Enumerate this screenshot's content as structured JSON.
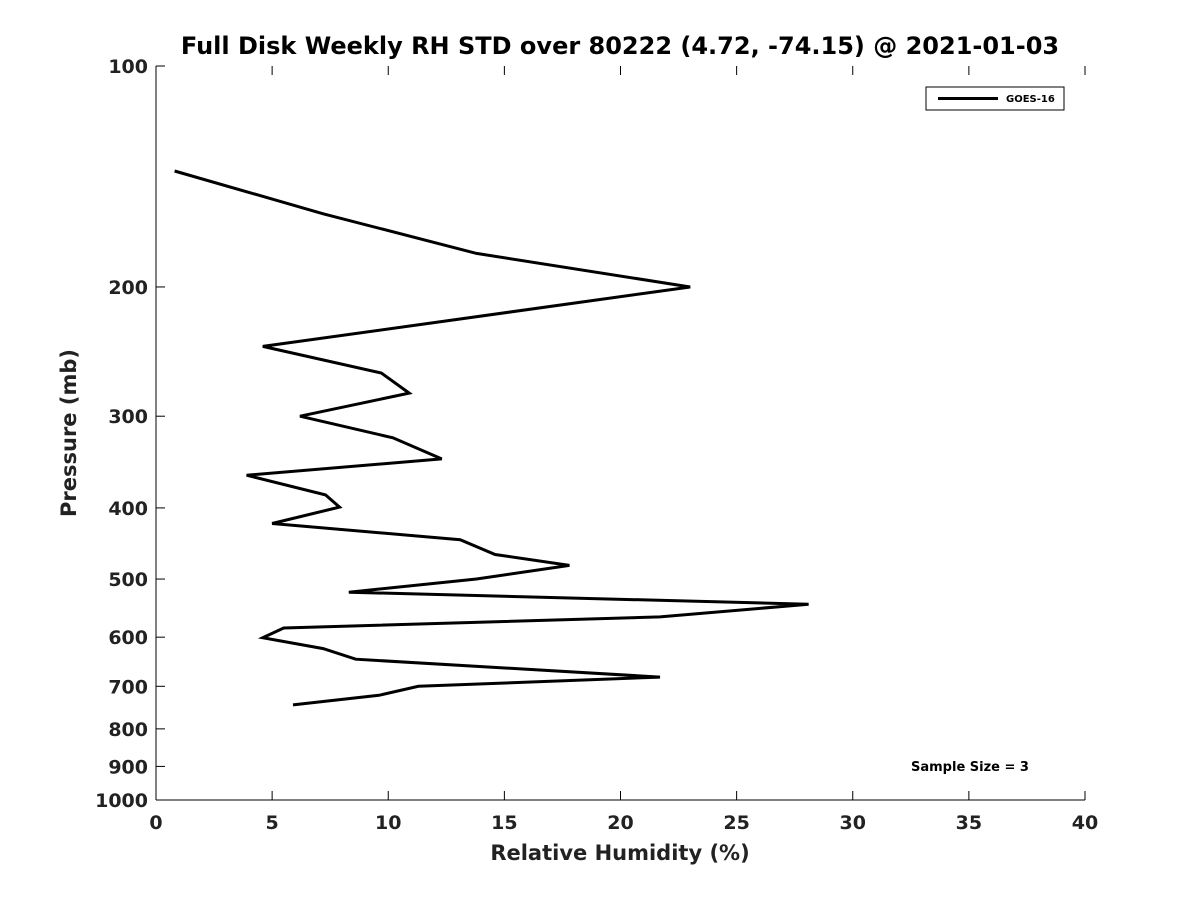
{
  "chart_data": {
    "type": "line",
    "title": "Full Disk Weekly RH STD over 80222 (4.72, -74.15) @ 2021-01-03",
    "xlabel": "Relative Humidity (%)",
    "ylabel": "Pressure (mb)",
    "xlim": [
      0,
      40
    ],
    "ylim": [
      1000,
      100
    ],
    "y_scale": "log",
    "y_reversed": true,
    "grid": false,
    "legend_position": "top-right",
    "x_ticks": [
      0,
      5,
      10,
      15,
      20,
      25,
      30,
      35,
      40
    ],
    "x_tick_labels": [
      "0",
      "5",
      "10",
      "15",
      "20",
      "25",
      "30",
      "35",
      "40"
    ],
    "y_ticks": [
      100,
      200,
      300,
      400,
      500,
      600,
      700,
      800,
      900,
      1000
    ],
    "y_tick_labels": [
      "100",
      "200",
      "300",
      "400",
      "500",
      "600",
      "700",
      "800",
      "900",
      "1000"
    ],
    "series": [
      {
        "name": "GOES-16",
        "color": "#000000",
        "points": [
          {
            "x": 0.8,
            "p": 139
          },
          {
            "x": 7.2,
            "p": 159
          },
          {
            "x": 13.8,
            "p": 180
          },
          {
            "x": 23.0,
            "p": 200
          },
          {
            "x": 4.6,
            "p": 241
          },
          {
            "x": 9.7,
            "p": 262
          },
          {
            "x": 10.9,
            "p": 279
          },
          {
            "x": 6.2,
            "p": 300
          },
          {
            "x": 10.2,
            "p": 321
          },
          {
            "x": 12.3,
            "p": 343
          },
          {
            "x": 3.9,
            "p": 361
          },
          {
            "x": 7.3,
            "p": 384
          },
          {
            "x": 7.9,
            "p": 399
          },
          {
            "x": 5.0,
            "p": 420
          },
          {
            "x": 13.1,
            "p": 442
          },
          {
            "x": 14.6,
            "p": 463
          },
          {
            "x": 17.8,
            "p": 479
          },
          {
            "x": 13.8,
            "p": 500
          },
          {
            "x": 8.3,
            "p": 521
          },
          {
            "x": 28.1,
            "p": 541
          },
          {
            "x": 21.7,
            "p": 563
          },
          {
            "x": 5.5,
            "p": 583
          },
          {
            "x": 4.6,
            "p": 601
          },
          {
            "x": 7.2,
            "p": 622
          },
          {
            "x": 8.6,
            "p": 643
          },
          {
            "x": 21.7,
            "p": 680
          },
          {
            "x": 11.3,
            "p": 700
          },
          {
            "x": 9.6,
            "p": 720
          },
          {
            "x": 5.9,
            "p": 742
          }
        ]
      }
    ],
    "annotation": "Sample Size = 3"
  }
}
